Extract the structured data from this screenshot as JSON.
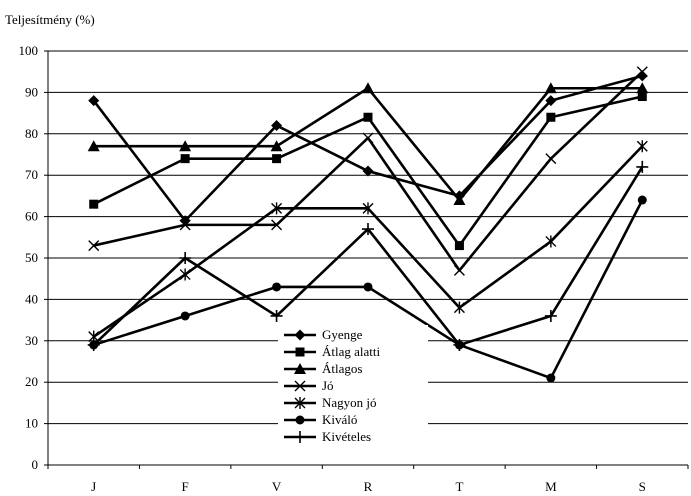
{
  "chart_data": {
    "type": "line",
    "title": "",
    "ylabel": "Teljesítmény (%)",
    "xlabel": "",
    "ylim": [
      0,
      100
    ],
    "yticks": [
      0,
      10,
      20,
      30,
      40,
      50,
      60,
      70,
      80,
      90,
      100
    ],
    "grid": true,
    "legend_position": "bottom-center",
    "categories": [
      "J",
      "F",
      "V",
      "R",
      "T",
      "M",
      "S"
    ],
    "series": [
      {
        "name": "Gyenge",
        "marker": "diamond",
        "values": [
          88,
          59,
          82,
          71,
          65,
          88,
          94
        ]
      },
      {
        "name": "Átlag alatti",
        "marker": "square",
        "values": [
          63,
          74,
          74,
          84,
          53,
          84,
          89
        ]
      },
      {
        "name": "Átlagos",
        "marker": "triangle",
        "values": [
          77,
          77,
          77,
          91,
          64,
          91,
          91
        ]
      },
      {
        "name": "Jó",
        "marker": "x",
        "values": [
          53,
          58,
          58,
          79,
          47,
          74,
          95
        ]
      },
      {
        "name": "Nagyon jó",
        "marker": "star",
        "values": [
          31,
          46,
          62,
          62,
          38,
          54,
          77
        ]
      },
      {
        "name": "Kiváló",
        "marker": "circle",
        "values": [
          29,
          36,
          43,
          43,
          29,
          21,
          64
        ]
      },
      {
        "name": "Kivételes",
        "marker": "plus",
        "values": [
          29,
          50,
          36,
          57,
          29,
          36,
          72
        ]
      }
    ]
  }
}
